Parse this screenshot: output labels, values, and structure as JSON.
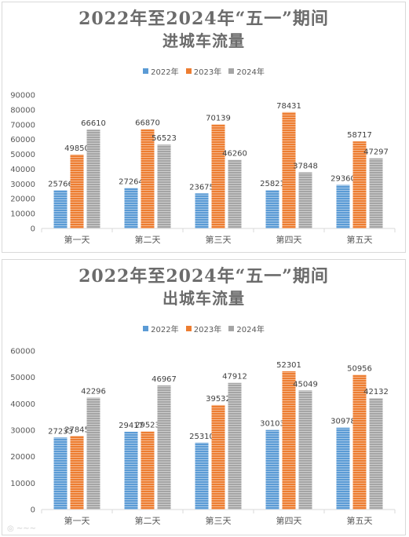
{
  "colors": {
    "s2022": "#5b9bd5",
    "s2023": "#ed7d31",
    "s2024": "#a5a5a5"
  },
  "chart_data": [
    {
      "type": "bar",
      "title_line1": "2022年至2024年“五一”期间",
      "title_line2": "进城车流量",
      "categories": [
        "第一天",
        "第二天",
        "第三天",
        "第四天",
        "第五天"
      ],
      "series": [
        {
          "name": "2022年",
          "values": [
            25766,
            27264,
            23675,
            25821,
            29360
          ]
        },
        {
          "name": "2023年",
          "values": [
            49850,
            66870,
            70139,
            78431,
            58717
          ]
        },
        {
          "name": "2024年",
          "values": [
            66610,
            56523,
            46260,
            37848,
            47297
          ]
        }
      ],
      "ylim": [
        0,
        90000
      ],
      "yticks": [
        "0",
        "10000",
        "20000",
        "30000",
        "40000",
        "50000",
        "60000",
        "70000",
        "80000",
        "90000"
      ],
      "legend": "top-center",
      "grid": false
    },
    {
      "type": "bar",
      "title_line1": "2022年至2024年“五一”期间",
      "title_line2": "出城车流量",
      "categories": [
        "第一天",
        "第二天",
        "第三天",
        "第四天",
        "第五天"
      ],
      "series": [
        {
          "name": "2022年",
          "values": [
            27233,
            29417,
            25310,
            30103,
            30978
          ]
        },
        {
          "name": "2023年",
          "values": [
            27845,
            29523,
            39532,
            52301,
            50956
          ]
        },
        {
          "name": "2024年",
          "values": [
            42296,
            46967,
            47912,
            45049,
            42132
          ]
        }
      ],
      "ylim": [
        0,
        60000
      ],
      "yticks": [
        "0",
        "10000",
        "20000",
        "30000",
        "40000",
        "50000",
        "60000"
      ],
      "legend": "top-center",
      "grid": false
    }
  ]
}
